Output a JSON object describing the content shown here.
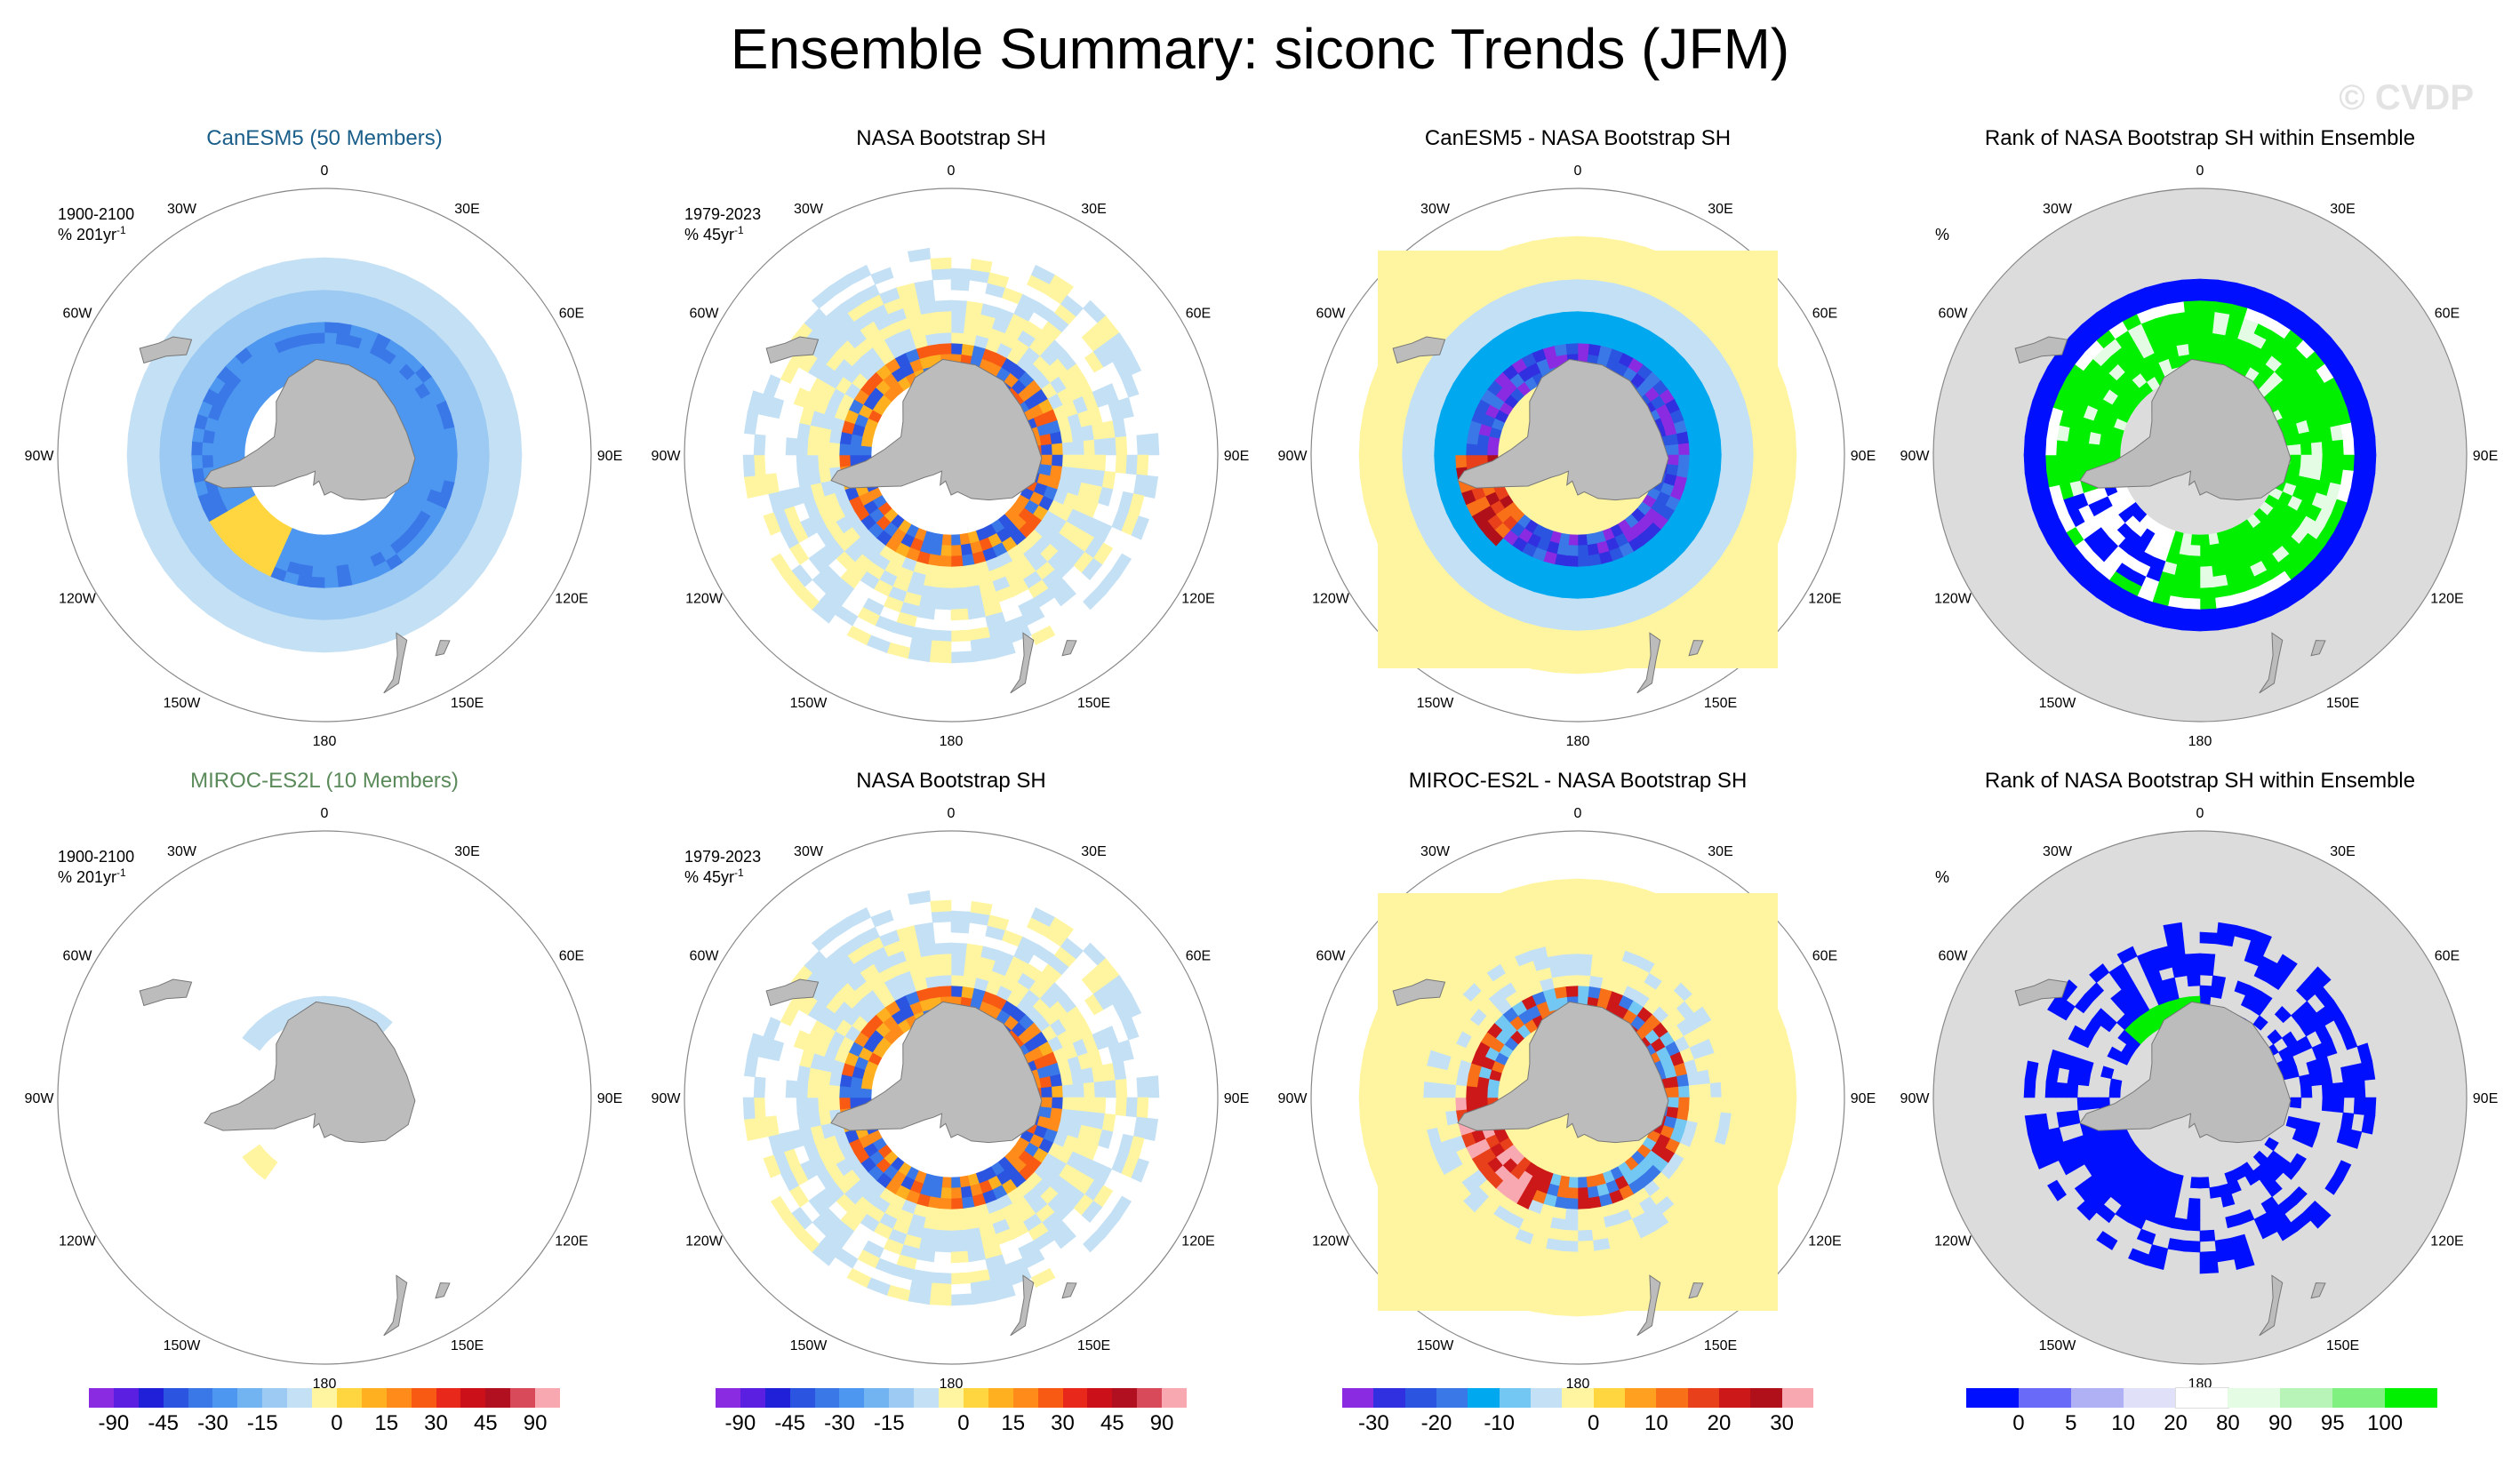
{
  "title": "Ensemble Summary: siconc Trends (JFM)",
  "watermark": "© CVDP",
  "longitude_labels": [
    "0",
    "30E",
    "60E",
    "90E",
    "120E",
    "150E",
    "180",
    "150W",
    "120W",
    "90W",
    "60W",
    "30W"
  ],
  "chart_data": [
    {
      "type": "heatmap",
      "panel": "CanESM5 ensemble mean",
      "title": "CanESM5 (50 Members)",
      "title_color": "#1a5e8a",
      "period": "1900-2100",
      "units_label": "% 201yr",
      "units_exp": "-1",
      "colorbar": "diverging90",
      "pattern": "model_wide"
    },
    {
      "type": "heatmap",
      "panel": "Observations",
      "title": "NASA Bootstrap SH",
      "title_color": "#000000",
      "period": "1979-2023",
      "units_label": "% 45yr",
      "units_exp": "-1",
      "colorbar": "diverging90",
      "pattern": "obs"
    },
    {
      "type": "heatmap",
      "panel": "Difference",
      "title": "CanESM5 - NASA Bootstrap SH",
      "title_color": "#000000",
      "colorbar": "diverging30",
      "pattern": "diff_wide"
    },
    {
      "type": "heatmap",
      "panel": "Rank",
      "title": "Rank of NASA Bootstrap SH within Ensemble",
      "title_color": "#000000",
      "units_label": "%",
      "colorbar": "rank",
      "pattern": "rank_wide"
    },
    {
      "type": "heatmap",
      "panel": "MIROC-ES2L ensemble mean",
      "title": "MIROC-ES2L (10 Members)",
      "title_color": "#5a8a5a",
      "period": "1900-2100",
      "units_label": "% 201yr",
      "units_exp": "-1",
      "colorbar": "diverging90",
      "pattern": "model_thin"
    },
    {
      "type": "heatmap",
      "panel": "Observations",
      "title": "NASA Bootstrap SH",
      "title_color": "#000000",
      "period": "1979-2023",
      "units_label": "% 45yr",
      "units_exp": "-1",
      "colorbar": "diverging90",
      "pattern": "obs"
    },
    {
      "type": "heatmap",
      "panel": "Difference",
      "title": "MIROC-ES2L - NASA Bootstrap SH",
      "title_color": "#000000",
      "colorbar": "diverging30",
      "pattern": "diff_thin"
    },
    {
      "type": "heatmap",
      "panel": "Rank",
      "title": "Rank of NASA Bootstrap SH within Ensemble",
      "title_color": "#000000",
      "units_label": "%",
      "colorbar": "rank",
      "pattern": "rank_thin"
    }
  ],
  "colorbars": {
    "diverging90": {
      "colors": [
        "#8a2be2",
        "#5a1fe0",
        "#2020d8",
        "#2b55e0",
        "#3a78e8",
        "#4d97f0",
        "#72b4f2",
        "#9ccaf2",
        "#c4e0f4",
        "#fff5a0",
        "#ffd640",
        "#ffb020",
        "#ff8c1a",
        "#f85a14",
        "#e8281a",
        "#cc101a",
        "#b01020",
        "#d84a5a",
        "#f7a8b0"
      ],
      "ticks": [
        "-90",
        "-45",
        "-30",
        "-15",
        "0",
        "15",
        "30",
        "45",
        "90"
      ]
    },
    "diverging30": {
      "colors": [
        "#8a2be2",
        "#3030e0",
        "#2b55e0",
        "#3a78e8",
        "#00a8f0",
        "#72c8f2",
        "#c4e0f4",
        "#fff5a0",
        "#ffd640",
        "#ffa020",
        "#f87018",
        "#e8401a",
        "#cc1818",
        "#b0101a",
        "#f7a8b0"
      ],
      "ticks": [
        "-30",
        "-20",
        "-10",
        "0",
        "10",
        "20",
        "30"
      ]
    },
    "rank": {
      "colors": [
        "#0010ff",
        "#6a6af8",
        "#b0b0f4",
        "#e0e0f8",
        "#ffffff",
        "#e4fbe4",
        "#b8f4b8",
        "#80f080",
        "#00f000"
      ],
      "ticks": [
        "0",
        "5",
        "10",
        "20",
        "80",
        "90",
        "95",
        "100"
      ]
    }
  }
}
